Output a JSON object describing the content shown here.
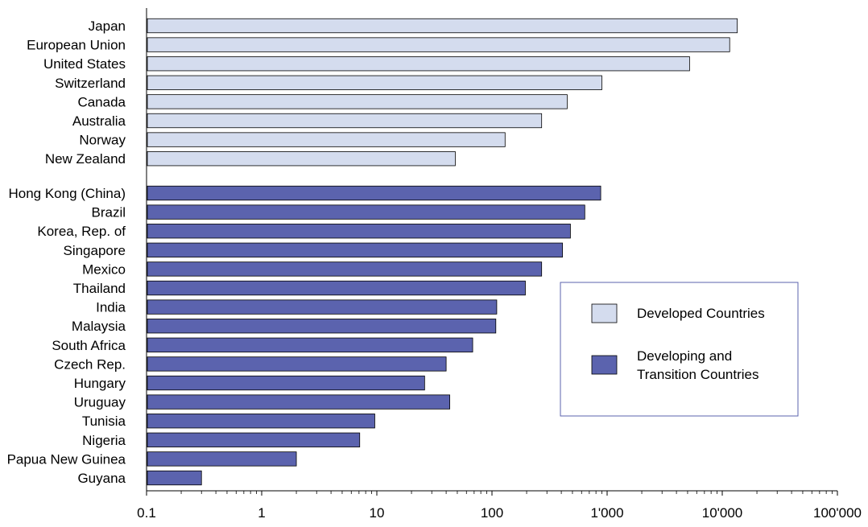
{
  "chart_data": {
    "type": "bar",
    "orientation": "horizontal",
    "xscale": "log",
    "xlim": [
      0.1,
      100000
    ],
    "grid": false,
    "legend_position": "center-right",
    "tick_labels": [
      "0.1",
      "1",
      "10",
      "100",
      "1'000",
      "10'000",
      "100'000"
    ],
    "tick_values": [
      0.1,
      1,
      10,
      100,
      1000,
      10000,
      100000
    ],
    "series": [
      {
        "name": "Developed Countries",
        "color": "#d4dcee",
        "categories": [
          "Japan",
          "European Union",
          "United States",
          "Switzerland",
          "Canada",
          "Australia",
          "Norway",
          "New Zealand"
        ],
        "values": [
          13500,
          11600,
          5200,
          900,
          450,
          270,
          130,
          48
        ]
      },
      {
        "name": "Developing and Transition Countries",
        "name_lines": [
          "Developing and",
          "Transition Countries"
        ],
        "color": "#5b63ae",
        "categories": [
          "Hong Kong (China)",
          "Brazil",
          "Korea, Rep. of",
          "Singapore",
          "Mexico",
          "Thailand",
          "India",
          "Malaysia",
          "South Africa",
          "Czech Rep.",
          "Hungary",
          "Uruguay",
          "Tunisia",
          "Nigeria",
          "Papua New Guinea",
          "Guyana"
        ],
        "values": [
          880,
          640,
          480,
          410,
          270,
          195,
          110,
          108,
          68,
          40,
          26,
          43,
          9.6,
          7.1,
          2.0,
          0.3
        ]
      }
    ]
  }
}
